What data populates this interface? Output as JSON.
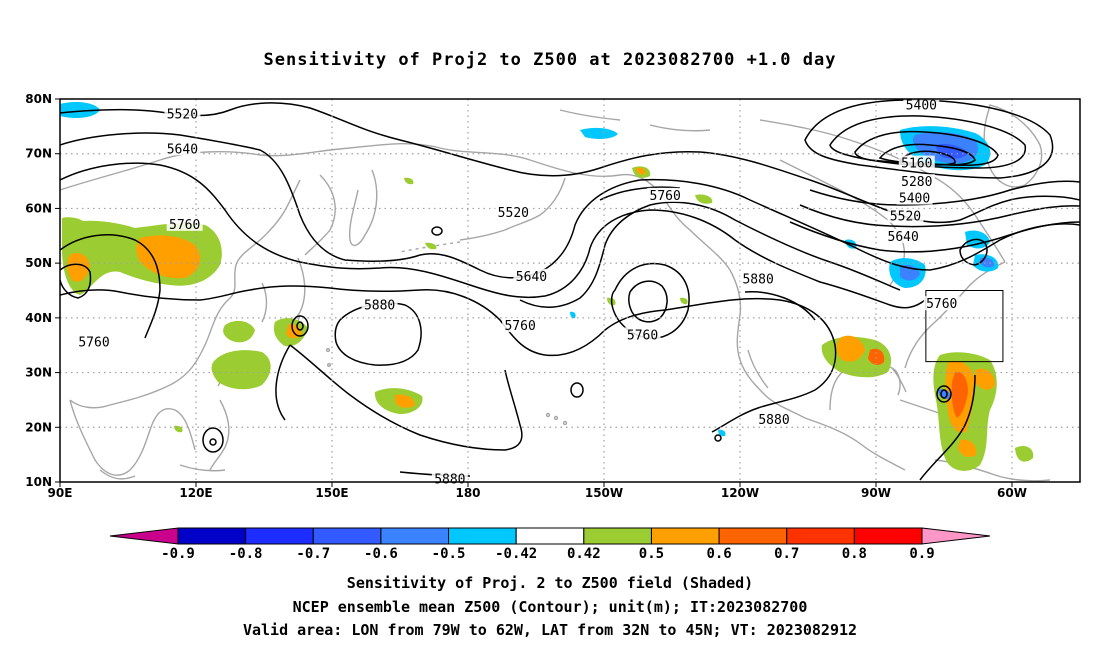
{
  "title": "Sensitivity of Proj2 to Z500 at 2023082700 +1.0 day",
  "lat_ticks": [
    {
      "label": "80N",
      "lat": 80
    },
    {
      "label": "70N",
      "lat": 70
    },
    {
      "label": "60N",
      "lat": 60
    },
    {
      "label": "50N",
      "lat": 50
    },
    {
      "label": "40N",
      "lat": 40
    },
    {
      "label": "30N",
      "lat": 30
    },
    {
      "label": "20N",
      "lat": 20
    },
    {
      "label": "10N",
      "lat": 10
    }
  ],
  "lon_ticks": [
    {
      "label": "90E",
      "lon": 90
    },
    {
      "label": "120E",
      "lon": 120
    },
    {
      "label": "150E",
      "lon": 150
    },
    {
      "label": "180",
      "lon": 180
    },
    {
      "label": "150W",
      "lon": 210
    },
    {
      "label": "120W",
      "lon": 240
    },
    {
      "label": "90W",
      "lon": 270
    },
    {
      "label": "60W",
      "lon": 300
    }
  ],
  "map_extent": {
    "lon_min": 90,
    "lon_max": 315,
    "lat_min": 10,
    "lat_max": 80
  },
  "valid_area": {
    "lon_from": -79,
    "lon_to": -62,
    "lat_from": 32,
    "lat_to": 45
  },
  "contour_labels": [
    {
      "text": "5520",
      "lon": 117,
      "lat": 77.2
    },
    {
      "text": "5640",
      "lon": 117,
      "lat": 70.8
    },
    {
      "text": "5760",
      "lon": 117.5,
      "lat": 57
    },
    {
      "text": "5760",
      "lon": 97.5,
      "lat": 35.5
    },
    {
      "text": "5880",
      "lon": 160.5,
      "lat": 42.3
    },
    {
      "text": "5880",
      "lon": 176,
      "lat": 10.5
    },
    {
      "text": "5520",
      "lon": 190,
      "lat": 59.2
    },
    {
      "text": "5640",
      "lon": 194,
      "lat": 47.5
    },
    {
      "text": "5760",
      "lon": 191.5,
      "lat": 38.5
    },
    {
      "text": "5760",
      "lon": 223.5,
      "lat": 62.3
    },
    {
      "text": "5760",
      "lon": 218.5,
      "lat": 36.8
    },
    {
      "text": "5880",
      "lon": 244,
      "lat": 47
    },
    {
      "text": "5880",
      "lon": 247.5,
      "lat": 21.3
    },
    {
      "text": "5400",
      "lon": 280,
      "lat": 78.8
    },
    {
      "text": "5160",
      "lon": 279,
      "lat": 68.2
    },
    {
      "text": "5280",
      "lon": 279,
      "lat": 64.8
    },
    {
      "text": "5400",
      "lon": 278.5,
      "lat": 61.8
    },
    {
      "text": "5520",
      "lon": 276.5,
      "lat": 58.5
    },
    {
      "text": "5640",
      "lon": 276,
      "lat": 54.8
    },
    {
      "text": "5760",
      "lon": 284.5,
      "lat": 42.5
    }
  ],
  "colorbar": {
    "colors": [
      "#c8008c",
      "#0000c8",
      "#1e2dff",
      "#325aff",
      "#3c82ff",
      "#00c8ff",
      "#ffffff",
      "#9bcd32",
      "#ffa000",
      "#ff6400",
      "#ff3200",
      "#ff0000",
      "#ff96c8"
    ],
    "labels": [
      "-0.9",
      "-0.8",
      "-0.7",
      "-0.6",
      "-0.5",
      "-0.42",
      "0.42",
      "0.5",
      "0.6",
      "0.7",
      "0.8",
      "0.9"
    ]
  },
  "captions": {
    "line1": "Sensitivity of Proj. 2 to Z500 field (Shaded)",
    "line2": "NCEP ensemble mean Z500 (Contour); unit(m); IT:2023082700",
    "line3": "Valid area: LON from 79W to 62W, LAT from 32N to 45N; VT: 2023082912"
  }
}
